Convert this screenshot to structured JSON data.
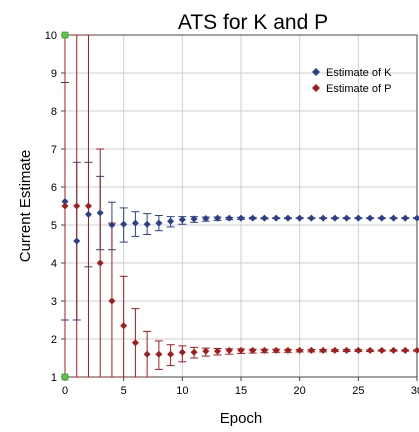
{
  "chart_data": {
    "type": "scatter",
    "title": "ATS for K and P",
    "xlabel": "Epoch",
    "ylabel": "Current Estimate",
    "xlim": [
      0,
      30
    ],
    "ylim": [
      1,
      10
    ],
    "xticks": [
      0,
      5,
      10,
      15,
      20,
      25,
      30
    ],
    "yticks": [
      1,
      2,
      3,
      4,
      5,
      6,
      7,
      8,
      9,
      10
    ],
    "grid": true,
    "legend_position": "top-right",
    "colors": {
      "K": "#2b3f8c",
      "P": "#a51c1c",
      "grid": "#cfcfcf",
      "marker": "#55cc44"
    },
    "markers": [
      {
        "x": 0,
        "y": 10
      },
      {
        "x": 0,
        "y": 1
      }
    ],
    "series": [
      {
        "name": "Estimate of K",
        "color": "#2b3f8c",
        "x": [
          0,
          1,
          2,
          3,
          4,
          5,
          6,
          7,
          8,
          9,
          10,
          11,
          12,
          13,
          14,
          15,
          16,
          17,
          18,
          19,
          20,
          21,
          22,
          23,
          24,
          25,
          26,
          27,
          28,
          29,
          30
        ],
        "y": [
          5.62,
          4.58,
          5.28,
          5.32,
          5.0,
          5.02,
          5.05,
          5.02,
          5.05,
          5.1,
          5.14,
          5.16,
          5.17,
          5.18,
          5.18,
          5.18,
          5.18,
          5.18,
          5.18,
          5.18,
          5.18,
          5.18,
          5.18,
          5.18,
          5.18,
          5.18,
          5.18,
          5.18,
          5.18,
          5.18,
          5.18
        ],
        "err_low": [
          2.5,
          2.5,
          3.9,
          4.35,
          4.35,
          4.55,
          4.7,
          4.75,
          4.85,
          4.95,
          5.02,
          5.07,
          5.1,
          5.12,
          5.14,
          5.15,
          5.16,
          5.16,
          5.17,
          5.17,
          5.17,
          5.17,
          5.17,
          5.17,
          5.17,
          5.17,
          5.17,
          5.17,
          5.17,
          5.17,
          5.17
        ],
        "err_high": [
          8.75,
          6.65,
          6.65,
          6.28,
          5.6,
          5.45,
          5.35,
          5.3,
          5.25,
          5.22,
          5.22,
          5.22,
          5.21,
          5.21,
          5.2,
          5.2,
          5.2,
          5.19,
          5.19,
          5.19,
          5.19,
          5.19,
          5.19,
          5.19,
          5.19,
          5.19,
          5.19,
          5.19,
          5.19,
          5.19,
          5.19
        ]
      },
      {
        "name": "Estimate of P",
        "color": "#a51c1c",
        "x": [
          0,
          1,
          2,
          3,
          4,
          5,
          6,
          7,
          8,
          9,
          10,
          11,
          12,
          13,
          14,
          15,
          16,
          17,
          18,
          19,
          20,
          21,
          22,
          23,
          24,
          25,
          26,
          27,
          28,
          29,
          30
        ],
        "y": [
          5.5,
          5.5,
          5.5,
          4.0,
          3.0,
          2.35,
          1.9,
          1.6,
          1.6,
          1.6,
          1.65,
          1.65,
          1.68,
          1.68,
          1.7,
          1.7,
          1.7,
          1.7,
          1.7,
          1.7,
          1.7,
          1.7,
          1.7,
          1.7,
          1.7,
          1.7,
          1.7,
          1.7,
          1.7,
          1.7,
          1.7
        ],
        "err_low": [
          1,
          1,
          1,
          1,
          1,
          1,
          1,
          1,
          1.2,
          1.3,
          1.4,
          1.5,
          1.55,
          1.58,
          1.6,
          1.62,
          1.63,
          1.64,
          1.65,
          1.65,
          1.66,
          1.66,
          1.66,
          1.67,
          1.67,
          1.67,
          1.67,
          1.68,
          1.68,
          1.68,
          1.68
        ],
        "err_high": [
          10,
          10,
          10,
          7,
          5.05,
          3.65,
          2.8,
          2.2,
          1.95,
          1.85,
          1.82,
          1.78,
          1.76,
          1.75,
          1.74,
          1.74,
          1.73,
          1.73,
          1.73,
          1.72,
          1.72,
          1.72,
          1.72,
          1.72,
          1.72,
          1.72,
          1.71,
          1.71,
          1.71,
          1.71,
          1.71
        ]
      }
    ]
  }
}
